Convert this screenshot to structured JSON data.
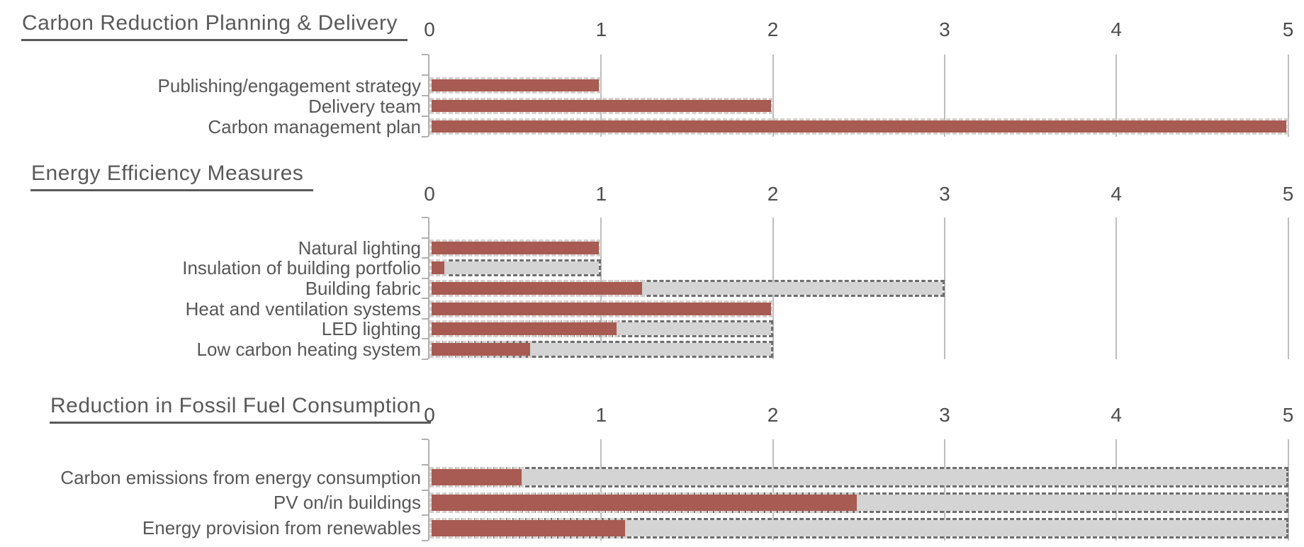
{
  "colors": {
    "background": "#ffffff",
    "score_bar": "#a85b53",
    "score_bar_border": "#d6d0cc",
    "target_bar_fill": "#d4d4d4",
    "target_bar_border": "#6e6e6e",
    "gridline": "#bdbdbd",
    "axis_line": "#b0b0b0",
    "title_text": "#595959",
    "label_text": "#575757",
    "tick_label_text": "#4d4d4d"
  },
  "chart_data": [
    {
      "type": "bar",
      "orientation": "horizontal",
      "title": "Carbon Reduction Planning & Delivery",
      "categories": [
        "Publishing/engagement strategy",
        "Delivery team",
        "Carbon management plan"
      ],
      "series": [
        {
          "name": "actual",
          "values": [
            1,
            2,
            5
          ]
        },
        {
          "name": "target",
          "values": [
            1,
            2,
            5
          ]
        }
      ],
      "xlim": [
        0,
        5
      ],
      "xticks": [
        0,
        1,
        2,
        3,
        4,
        5
      ],
      "tick_position": "top",
      "grid": true,
      "legend": "none"
    },
    {
      "type": "bar",
      "orientation": "horizontal",
      "title": "Energy Efficiency Measures",
      "categories": [
        "Natural lighting",
        "Insulation of building portfolio",
        "Building fabric",
        "Heat and ventilation systems",
        "LED lighting",
        "Low carbon heating system"
      ],
      "series": [
        {
          "name": "actual",
          "values": [
            1,
            0.1,
            1.25,
            2,
            1.1,
            0.6
          ]
        },
        {
          "name": "target",
          "values": [
            1,
            1,
            3,
            2,
            2,
            2
          ]
        }
      ],
      "xlim": [
        0,
        5
      ],
      "xticks": [
        0,
        1,
        2,
        3,
        4,
        5
      ],
      "tick_position": "top",
      "grid": true,
      "legend": "none"
    },
    {
      "type": "bar",
      "orientation": "horizontal",
      "title": "Reduction in Fossil Fuel Consumption",
      "categories": [
        "Carbon emissions from energy consumption",
        "PV on/in buildings",
        "Energy provision from renewables"
      ],
      "series": [
        {
          "name": "actual",
          "values": [
            0.55,
            2.5,
            1.15
          ]
        },
        {
          "name": "target",
          "values": [
            5,
            5,
            5
          ]
        }
      ],
      "xlim": [
        0,
        5
      ],
      "xticks": [
        0,
        1,
        2,
        3,
        4,
        5
      ],
      "tick_position": "top",
      "grid": true,
      "legend": "none"
    }
  ]
}
